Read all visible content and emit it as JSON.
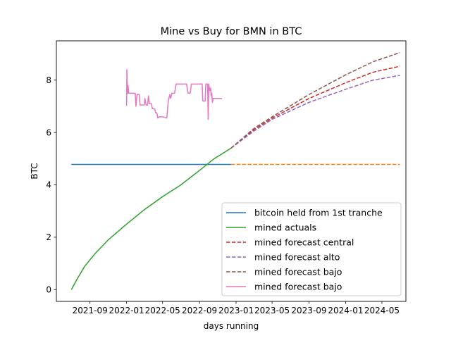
{
  "chart_data": {
    "type": "line",
    "title": "Mine vs Buy for BMN in BTC",
    "xlabel": "days running",
    "ylabel": "BTC",
    "x_tick_labels": [
      "2021-09",
      "2022-01",
      "2022-05",
      "2022-09",
      "2023-01",
      "2023-05",
      "2023-09",
      "2024-01",
      "2024-05"
    ],
    "y_tick_labels": [
      "0",
      "2",
      "4",
      "6",
      "8"
    ],
    "xlim": [
      "2021-05-12",
      "2024-07-20"
    ],
    "ylim": [
      -0.45,
      9.5
    ],
    "grid": false,
    "legend_position": "lower right",
    "series": [
      {
        "name": "bitcoin held from 1st tranche",
        "color": "#1f77b4",
        "style": "solid",
        "points": [
          [
            "2021-07-01",
            4.78
          ],
          [
            "2022-12-15",
            4.78
          ]
        ]
      },
      {
        "name": "",
        "color": "#ff7f0e",
        "style": "dashed",
        "points": [
          [
            "2022-12-15",
            4.78
          ],
          [
            "2024-06-30",
            4.78
          ]
        ]
      },
      {
        "name": "mined actuals",
        "color": "#2ca02c",
        "style": "solid",
        "points": [
          [
            "2021-07-01",
            0.0
          ],
          [
            "2021-07-20",
            0.4
          ],
          [
            "2021-08-15",
            0.9
          ],
          [
            "2021-09-20",
            1.4
          ],
          [
            "2021-11-01",
            1.9
          ],
          [
            "2022-01-01",
            2.5
          ],
          [
            "2022-03-01",
            3.05
          ],
          [
            "2022-05-01",
            3.55
          ],
          [
            "2022-07-01",
            4.0
          ],
          [
            "2022-09-01",
            4.55
          ],
          [
            "2022-10-20",
            5.0
          ],
          [
            "2022-12-15",
            5.4
          ]
        ]
      },
      {
        "name": "mined forecast central",
        "color": "#d62728",
        "style": "dashed",
        "points": [
          [
            "2022-12-15",
            5.4
          ],
          [
            "2023-03-01",
            6.1
          ],
          [
            "2023-05-01",
            6.55
          ],
          [
            "2023-09-01",
            7.3
          ],
          [
            "2024-01-01",
            7.9
          ],
          [
            "2024-04-01",
            8.3
          ],
          [
            "2024-06-30",
            8.53
          ]
        ]
      },
      {
        "name": "mined forecast alto",
        "color": "#9467bd",
        "style": "dashed",
        "points": [
          [
            "2022-12-15",
            5.4
          ],
          [
            "2023-03-01",
            6.05
          ],
          [
            "2023-05-01",
            6.5
          ],
          [
            "2023-09-01",
            7.15
          ],
          [
            "2024-01-01",
            7.65
          ],
          [
            "2024-04-01",
            8.0
          ],
          [
            "2024-06-30",
            8.18
          ]
        ]
      },
      {
        "name": "mined forecast bajo",
        "color": "#8c564b",
        "style": "dashed",
        "points": [
          [
            "2022-12-15",
            5.4
          ],
          [
            "2023-03-01",
            6.15
          ],
          [
            "2023-05-01",
            6.6
          ],
          [
            "2023-09-01",
            7.45
          ],
          [
            "2024-01-01",
            8.2
          ],
          [
            "2024-04-01",
            8.7
          ],
          [
            "2024-06-30",
            9.05
          ]
        ]
      },
      {
        "name": "mined forecast bajo",
        "color": "#e377c2",
        "style": "solid",
        "points": [
          [
            "2022-01-01",
            7.02
          ],
          [
            "2022-01-02",
            8.4
          ],
          [
            "2022-01-04",
            7.5
          ],
          [
            "2022-01-06",
            7.8
          ],
          [
            "2022-01-08",
            7.5
          ],
          [
            "2022-01-30",
            7.5
          ],
          [
            "2022-02-01",
            7.0
          ],
          [
            "2022-02-05",
            7.45
          ],
          [
            "2022-02-12",
            7.45
          ],
          [
            "2022-02-15",
            7.05
          ],
          [
            "2022-03-01",
            7.05
          ],
          [
            "2022-03-03",
            7.3
          ],
          [
            "2022-03-07",
            7.05
          ],
          [
            "2022-03-12",
            7.05
          ],
          [
            "2022-03-15",
            7.4
          ],
          [
            "2022-03-18",
            7.1
          ],
          [
            "2022-03-25",
            7.1
          ],
          [
            "2022-03-28",
            6.9
          ],
          [
            "2022-04-05",
            6.9
          ],
          [
            "2022-04-08",
            6.75
          ],
          [
            "2022-04-12",
            6.75
          ],
          [
            "2022-04-15",
            6.55
          ],
          [
            "2022-04-20",
            6.6
          ],
          [
            "2022-05-01",
            6.6
          ],
          [
            "2022-05-15",
            6.55
          ],
          [
            "2022-05-20",
            7.2
          ],
          [
            "2022-05-25",
            7.45
          ],
          [
            "2022-05-28",
            7.3
          ],
          [
            "2022-06-01",
            7.5
          ],
          [
            "2022-06-10",
            7.5
          ],
          [
            "2022-06-15",
            7.85
          ],
          [
            "2022-07-01",
            7.85
          ],
          [
            "2022-07-20",
            7.85
          ],
          [
            "2022-07-25",
            7.5
          ],
          [
            "2022-08-01",
            7.5
          ],
          [
            "2022-08-05",
            7.85
          ],
          [
            "2022-09-01",
            7.85
          ],
          [
            "2022-09-10",
            7.85
          ],
          [
            "2022-09-12",
            7.2
          ],
          [
            "2022-09-20",
            7.2
          ],
          [
            "2022-09-22",
            7.85
          ],
          [
            "2022-09-28",
            7.85
          ],
          [
            "2022-09-30",
            6.5
          ],
          [
            "2022-10-02",
            7.85
          ],
          [
            "2022-10-05",
            7.6
          ],
          [
            "2022-10-08",
            7.7
          ],
          [
            "2022-10-10",
            7.4
          ],
          [
            "2022-10-12",
            7.5
          ],
          [
            "2022-10-14",
            7.15
          ],
          [
            "2022-10-16",
            7.3
          ],
          [
            "2022-11-15",
            7.3
          ]
        ]
      }
    ]
  }
}
